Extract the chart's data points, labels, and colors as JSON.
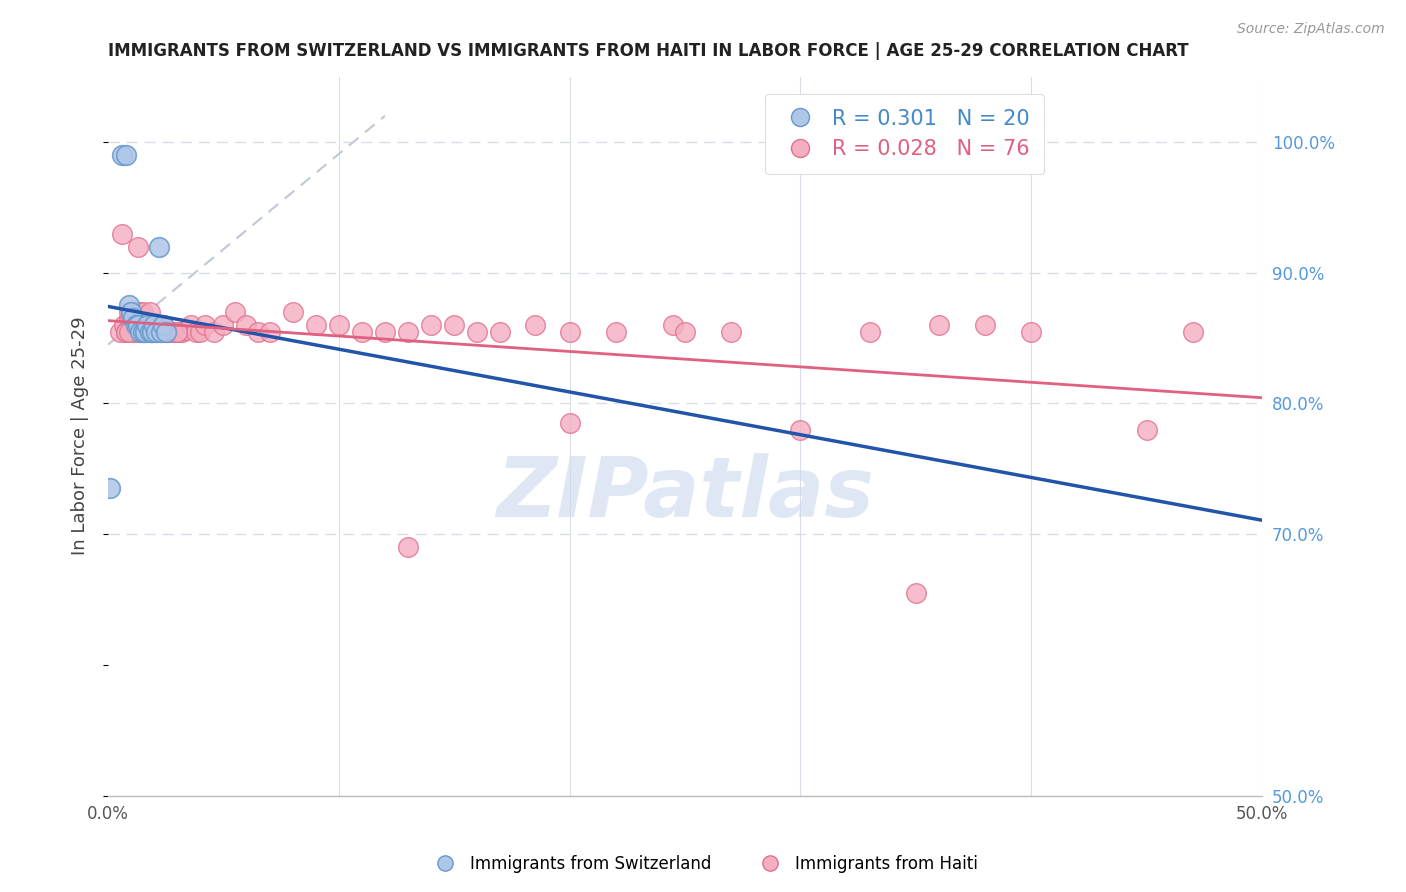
{
  "title": "IMMIGRANTS FROM SWITZERLAND VS IMMIGRANTS FROM HAITI IN LABOR FORCE | AGE 25-29 CORRELATION CHART",
  "source": "Source: ZipAtlas.com",
  "ylabel_left": "In Labor Force | Age 25-29",
  "xlim": [
    0.0,
    0.5
  ],
  "ylim": [
    0.5,
    1.05
  ],
  "switzerland_color": "#aec6e8",
  "haiti_color": "#f4aec0",
  "switzerland_edge": "#6699cc",
  "haiti_edge": "#e07090",
  "trend_switzerland_color": "#2255aa",
  "trend_haiti_color": "#e06080",
  "diag_line_color": "#c0c8d8",
  "grid_color": "#d8dde8",
  "legend_color_switzerland": "#4488cc",
  "legend_color_haiti": "#e06080",
  "right_axis_color": "#5599dd",
  "watermark_color": "#ccd8ee",
  "background_color": "#ffffff",
  "sw_x": [
    0.001,
    0.006,
    0.008,
    0.009,
    0.01,
    0.011,
    0.012,
    0.013,
    0.014,
    0.015,
    0.016,
    0.017,
    0.018,
    0.019,
    0.02,
    0.021,
    0.022,
    0.023,
    0.024,
    0.025
  ],
  "sw_y": [
    0.735,
    0.99,
    0.99,
    0.875,
    0.87,
    0.865,
    0.86,
    0.86,
    0.855,
    0.855,
    0.855,
    0.86,
    0.855,
    0.855,
    0.86,
    0.855,
    0.92,
    0.855,
    0.86,
    0.855
  ],
  "ht_x": [
    0.005,
    0.006,
    0.007,
    0.008,
    0.009,
    0.009,
    0.01,
    0.011,
    0.011,
    0.012,
    0.013,
    0.013,
    0.014,
    0.015,
    0.016,
    0.016,
    0.017,
    0.018,
    0.019,
    0.019,
    0.02,
    0.021,
    0.022,
    0.022,
    0.023,
    0.024,
    0.025,
    0.026,
    0.027,
    0.028,
    0.03,
    0.031,
    0.032,
    0.034,
    0.036,
    0.038,
    0.04,
    0.042,
    0.046,
    0.05,
    0.055,
    0.06,
    0.065,
    0.07,
    0.08,
    0.09,
    0.1,
    0.11,
    0.12,
    0.13,
    0.14,
    0.15,
    0.16,
    0.17,
    0.185,
    0.2,
    0.22,
    0.245,
    0.27,
    0.3,
    0.33,
    0.36,
    0.38,
    0.4,
    0.45,
    0.47,
    0.008,
    0.009,
    0.015,
    0.02,
    0.025,
    0.03,
    0.13,
    0.2,
    0.25,
    0.35
  ],
  "ht_y": [
    0.855,
    0.93,
    0.86,
    0.855,
    0.865,
    0.87,
    0.87,
    0.86,
    0.855,
    0.855,
    0.87,
    0.92,
    0.87,
    0.87,
    0.86,
    0.855,
    0.855,
    0.87,
    0.855,
    0.86,
    0.86,
    0.855,
    0.855,
    0.86,
    0.86,
    0.86,
    0.855,
    0.855,
    0.855,
    0.855,
    0.855,
    0.855,
    0.855,
    0.856,
    0.86,
    0.855,
    0.855,
    0.86,
    0.855,
    0.86,
    0.87,
    0.86,
    0.855,
    0.855,
    0.87,
    0.86,
    0.86,
    0.855,
    0.855,
    0.855,
    0.86,
    0.86,
    0.855,
    0.855,
    0.86,
    0.855,
    0.855,
    0.86,
    0.855,
    0.78,
    0.855,
    0.86,
    0.86,
    0.855,
    0.78,
    0.855,
    0.855,
    0.855,
    0.855,
    0.855,
    0.855,
    0.855,
    0.69,
    0.785,
    0.855,
    0.655
  ]
}
